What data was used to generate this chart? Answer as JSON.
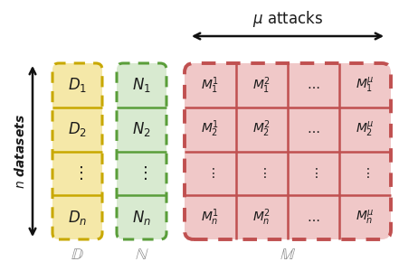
{
  "D_bg": "#f5e8a8",
  "D_border": "#c8a800",
  "N_bg": "#d8ead0",
  "N_border": "#5a9e3a",
  "M_bg": "#f0c8c8",
  "M_border": "#c05050",
  "text_color": "#1a1a1a",
  "label_color": "#888888",
  "arrow_color": "#111111",
  "figsize": [
    4.62,
    3.0
  ],
  "dpi": 100
}
